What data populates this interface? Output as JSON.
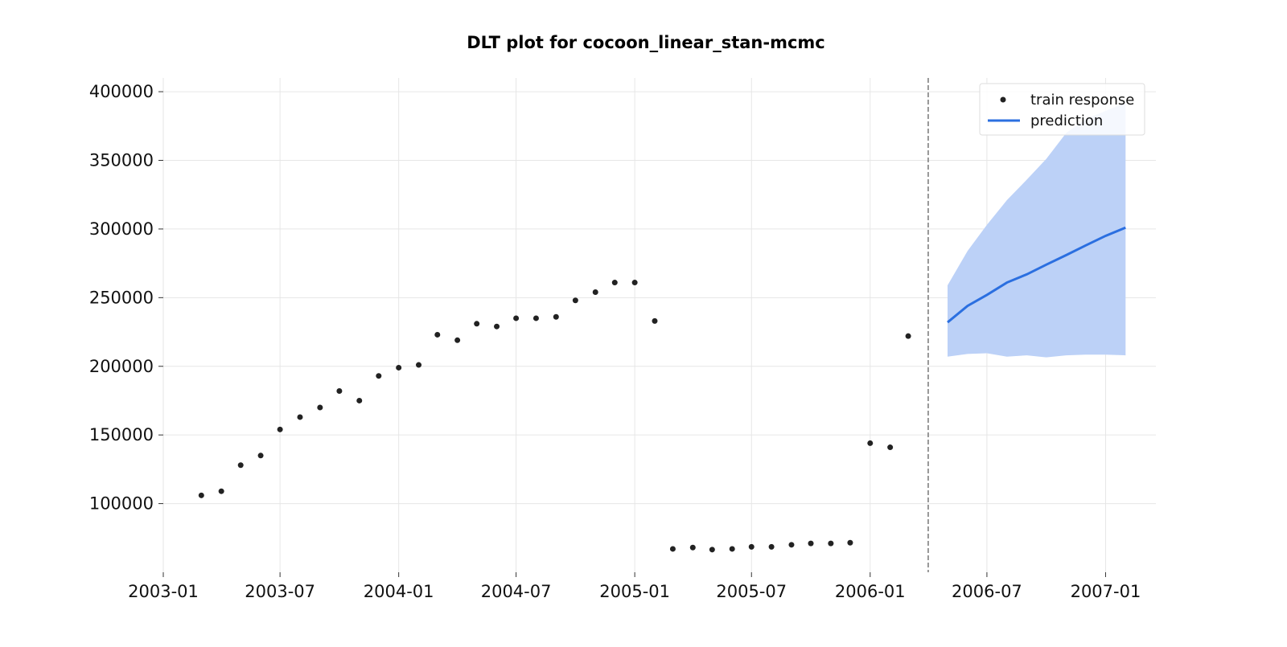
{
  "chart_data": {
    "type": "line",
    "title": "DLT plot for cocoon_linear_stan-mcmc",
    "xlabel": "",
    "ylabel": "",
    "xlim": [
      "2003-01-01",
      "2007-03-20"
    ],
    "ylim": [
      50000,
      410000
    ],
    "x_ticks": [
      "2003-01",
      "2003-07",
      "2004-01",
      "2004-07",
      "2005-01",
      "2005-07",
      "2006-01",
      "2006-07",
      "2007-01"
    ],
    "y_ticks": [
      100000,
      150000,
      200000,
      250000,
      300000,
      350000,
      400000
    ],
    "grid": true,
    "legend": {
      "position": "top-right",
      "entries": [
        {
          "label": "train response",
          "marker": "dot",
          "color": "#222222"
        },
        {
          "label": "prediction",
          "marker": "line",
          "color": "#2b6fe0"
        }
      ]
    },
    "split_date": "2006-04-01",
    "series": [
      {
        "name": "train response",
        "kind": "scatter",
        "color": "#222222",
        "x": [
          "2003-03-01",
          "2003-04-01",
          "2003-05-01",
          "2003-06-01",
          "2003-07-01",
          "2003-08-01",
          "2003-09-01",
          "2003-10-01",
          "2003-11-01",
          "2003-12-01",
          "2004-01-01",
          "2004-02-01",
          "2004-03-01",
          "2004-04-01",
          "2004-05-01",
          "2004-06-01",
          "2004-07-01",
          "2004-08-01",
          "2004-09-01",
          "2004-10-01",
          "2004-11-01",
          "2004-12-01",
          "2005-01-01",
          "2005-02-01",
          "2005-03-01",
          "2005-04-01",
          "2005-05-01",
          "2005-06-01",
          "2005-07-01",
          "2005-08-01",
          "2005-09-01",
          "2005-10-01",
          "2005-11-01",
          "2005-12-01",
          "2006-01-01",
          "2006-02-01",
          "2006-03-01"
        ],
        "y": [
          106000,
          109000,
          128000,
          135000,
          154000,
          163000,
          170000,
          182000,
          175000,
          193000,
          199000,
          201000,
          223000,
          219000,
          231000,
          229000,
          235000,
          235000,
          236000,
          248000,
          254000,
          261000,
          261000,
          233000,
          67000,
          68000,
          66500,
          67000,
          68500,
          68500,
          70000,
          71000,
          71000,
          71500,
          144000,
          141000,
          222000
        ]
      },
      {
        "name": "prediction",
        "kind": "line",
        "color": "#2b6fe0",
        "x": [
          "2006-05-01",
          "2006-06-01",
          "2006-07-01",
          "2006-08-01",
          "2006-09-01",
          "2006-10-01",
          "2006-11-01",
          "2006-12-01",
          "2007-01-01",
          "2007-02-01"
        ],
        "y": [
          232000,
          244000,
          252000,
          261000,
          267000,
          274000,
          281000,
          288000,
          295000,
          301000
        ],
        "upper": [
          259000,
          284000,
          303000,
          321000,
          336000,
          351000,
          370000,
          380000,
          386000,
          392000
        ],
        "lower": [
          207000,
          209000,
          209500,
          207000,
          208000,
          206500,
          208000,
          208500,
          208500,
          208000
        ],
        "band_color": "#bcd1f7"
      }
    ]
  }
}
